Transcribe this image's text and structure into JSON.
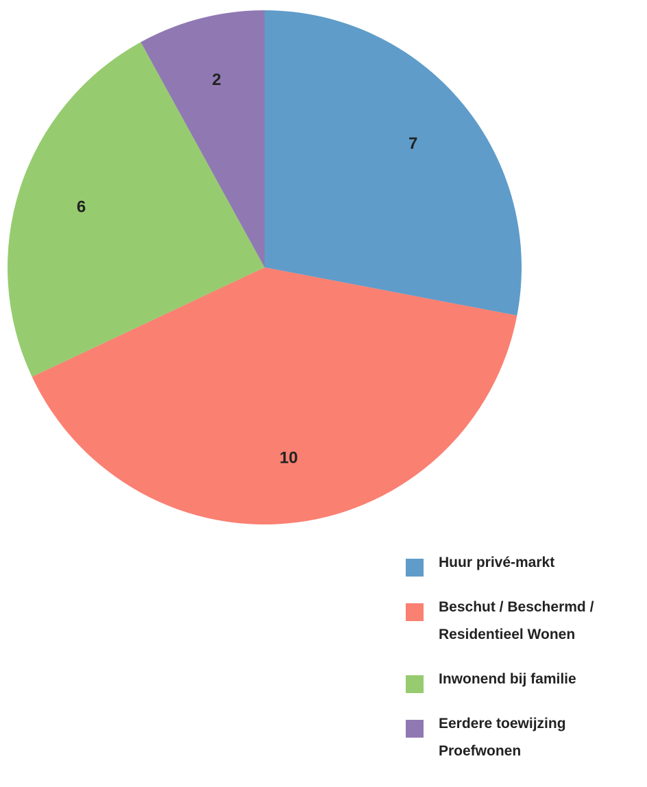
{
  "chart_data": {
    "type": "pie",
    "categories": [
      "Huur privé-markt",
      "Beschut / Beschermd / Residentieel Wonen",
      "Inwonend bij familie",
      "Eerdere toewijzing Proefwonen"
    ],
    "values": [
      7,
      10,
      6,
      2
    ],
    "colors": [
      "#5f9cc9",
      "#fa8072",
      "#96cc6f",
      "#9079b2"
    ]
  }
}
